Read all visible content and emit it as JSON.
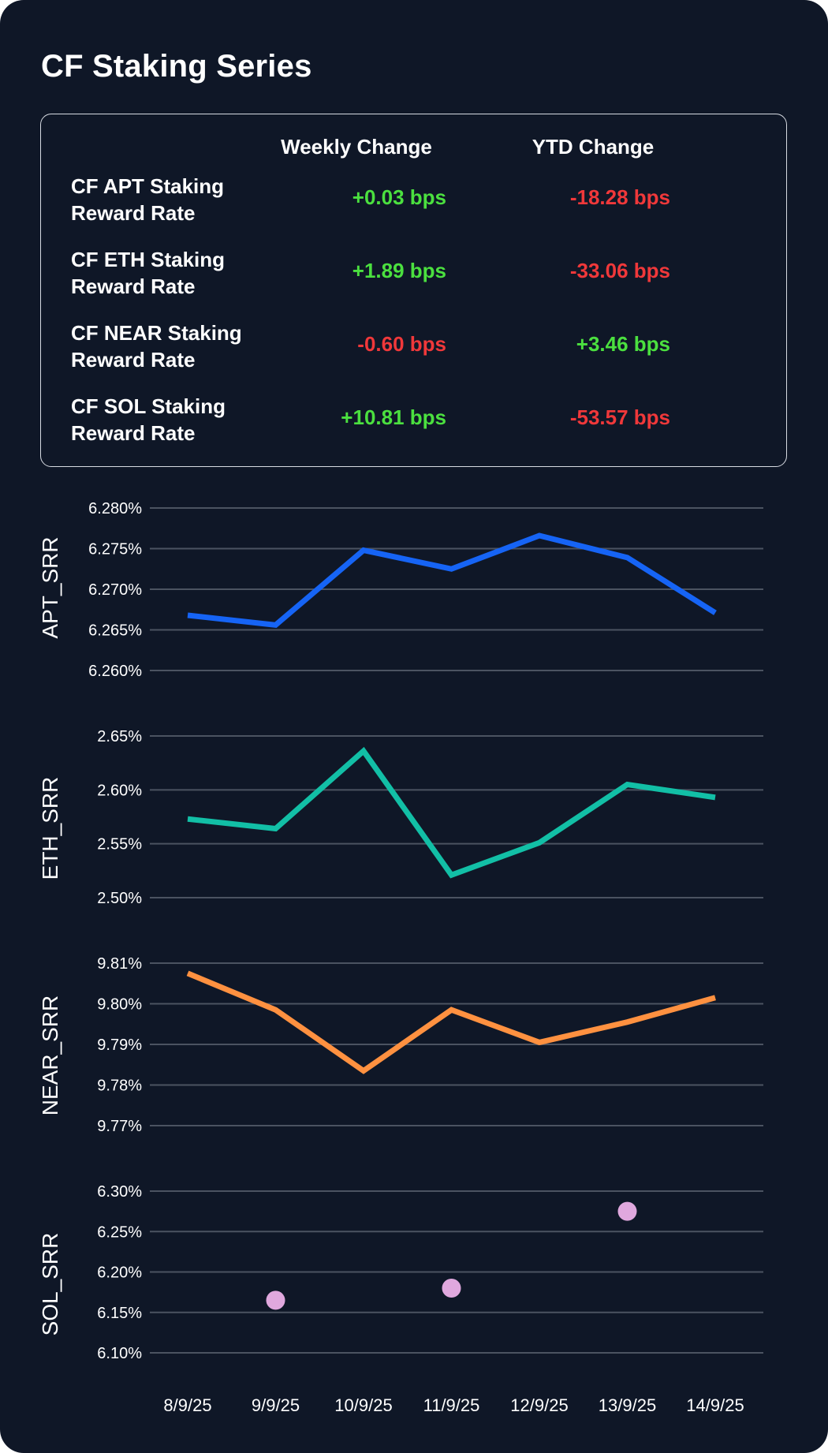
{
  "title": "CF Staking Series",
  "colors": {
    "background": "#0f1727",
    "positive": "#4be03f",
    "negative": "#f0383a",
    "apt": "#1664f5",
    "eth": "#12bfa6",
    "near": "#ff9140",
    "sol": "#e0a8de"
  },
  "summary_table": {
    "headers": [
      "Weekly Change",
      "YTD Change"
    ],
    "rows": [
      {
        "label": "CF APT Staking Reward Rate",
        "weekly": "+0.03 bps",
        "ytd": "-18.28 bps"
      },
      {
        "label": "CF ETH Staking Reward Rate",
        "weekly": "+1.89 bps",
        "ytd": "-33.06 bps"
      },
      {
        "label": "CF NEAR Staking Reward Rate",
        "weekly": "-0.60 bps",
        "ytd": "+3.46 bps"
      },
      {
        "label": "CF SOL Staking Reward Rate",
        "weekly": "+10.81 bps",
        "ytd": "-53.57 bps"
      }
    ]
  },
  "chart_data": [
    {
      "type": "line",
      "ylabel": "APT_SRR",
      "x": [
        "8/9/25",
        "9/9/25",
        "10/9/25",
        "11/9/25",
        "12/9/25",
        "13/9/25",
        "14/9/25"
      ],
      "yticks": [
        "6.260%",
        "6.265%",
        "6.270%",
        "6.275%",
        "6.280%"
      ],
      "ylim": [
        6.26,
        6.28
      ],
      "values": [
        6.2668,
        6.2656,
        6.2748,
        6.2725,
        6.2766,
        6.2739,
        6.2671
      ],
      "grid": true
    },
    {
      "type": "line",
      "ylabel": "ETH_SRR",
      "x": [
        "8/9/25",
        "9/9/25",
        "10/9/25",
        "11/9/25",
        "12/9/25",
        "13/9/25",
        "14/9/25"
      ],
      "yticks": [
        "2.50%",
        "2.55%",
        "2.60%",
        "2.65%"
      ],
      "ylim": [
        2.5,
        2.65
      ],
      "values": [
        2.573,
        2.564,
        2.636,
        2.521,
        2.551,
        2.605,
        2.593
      ],
      "grid": true
    },
    {
      "type": "line",
      "ylabel": "NEAR_SRR",
      "x": [
        "8/9/25",
        "9/9/25",
        "10/9/25",
        "11/9/25",
        "12/9/25",
        "13/9/25",
        "14/9/25"
      ],
      "yticks": [
        "9.77%",
        "9.78%",
        "9.79%",
        "9.80%",
        "9.81%"
      ],
      "ylim": [
        9.77,
        9.81
      ],
      "values": [
        9.8075,
        9.7985,
        9.7835,
        9.7985,
        9.7905,
        9.7955,
        9.8015
      ],
      "grid": true
    },
    {
      "type": "scatter",
      "ylabel": "SOL_SRR",
      "x": [
        "8/9/25",
        "9/9/25",
        "10/9/25",
        "11/9/25",
        "12/9/25",
        "13/9/25",
        "14/9/25"
      ],
      "yticks": [
        "6.10%",
        "6.15%",
        "6.20%",
        "6.25%",
        "6.30%"
      ],
      "ylim": [
        6.1,
        6.3
      ],
      "points": [
        {
          "x": "9/9/25",
          "y": 6.165
        },
        {
          "x": "11/9/25",
          "y": 6.18
        },
        {
          "x": "13/9/25",
          "y": 6.275
        }
      ],
      "grid": true
    }
  ]
}
